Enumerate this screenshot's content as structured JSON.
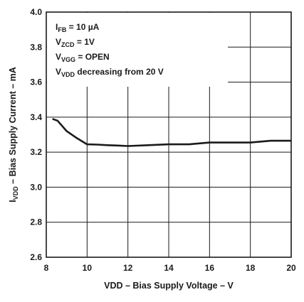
{
  "chart_data": {
    "type": "line",
    "title": "",
    "xlabel": "VDD – Bias Supply Voltage  – V",
    "ylabel": {
      "main": "I",
      "sub": "VDD",
      "rest": " – Bias Supply Current – mA"
    },
    "xlim": [
      8,
      20
    ],
    "ylim": [
      2.6,
      4.0
    ],
    "xticks": [
      8,
      10,
      12,
      14,
      16,
      18,
      20
    ],
    "yticks": [
      2.6,
      2.8,
      3.0,
      3.2,
      3.4,
      3.6,
      3.8,
      4.0
    ],
    "grid": true,
    "series": [
      {
        "x": [
          8.3,
          8.55,
          9.0,
          9.5,
          10.0,
          10.5,
          11.0,
          11.5,
          12.0,
          13.0,
          14.0,
          15.0,
          16.0,
          17.0,
          18.0,
          19.0,
          20.0
        ],
        "values": [
          3.39,
          3.38,
          3.32,
          3.28,
          3.245,
          3.243,
          3.24,
          3.238,
          3.235,
          3.24,
          3.245,
          3.245,
          3.255,
          3.255,
          3.255,
          3.265,
          3.265
        ]
      }
    ],
    "annotations": [
      {
        "main": "I",
        "sub": "FB",
        "rest": " = 10 µA"
      },
      {
        "main": "V",
        "sub": "ZCD",
        "rest": " = 1V"
      },
      {
        "main": "V",
        "sub": "VGG",
        "rest": " = OPEN"
      },
      {
        "main": "V",
        "sub": "VDD",
        "rest": " decreasing from 20 V"
      }
    ],
    "line_color": "#1a1a1a",
    "grid_color": "#1a1a1a"
  }
}
